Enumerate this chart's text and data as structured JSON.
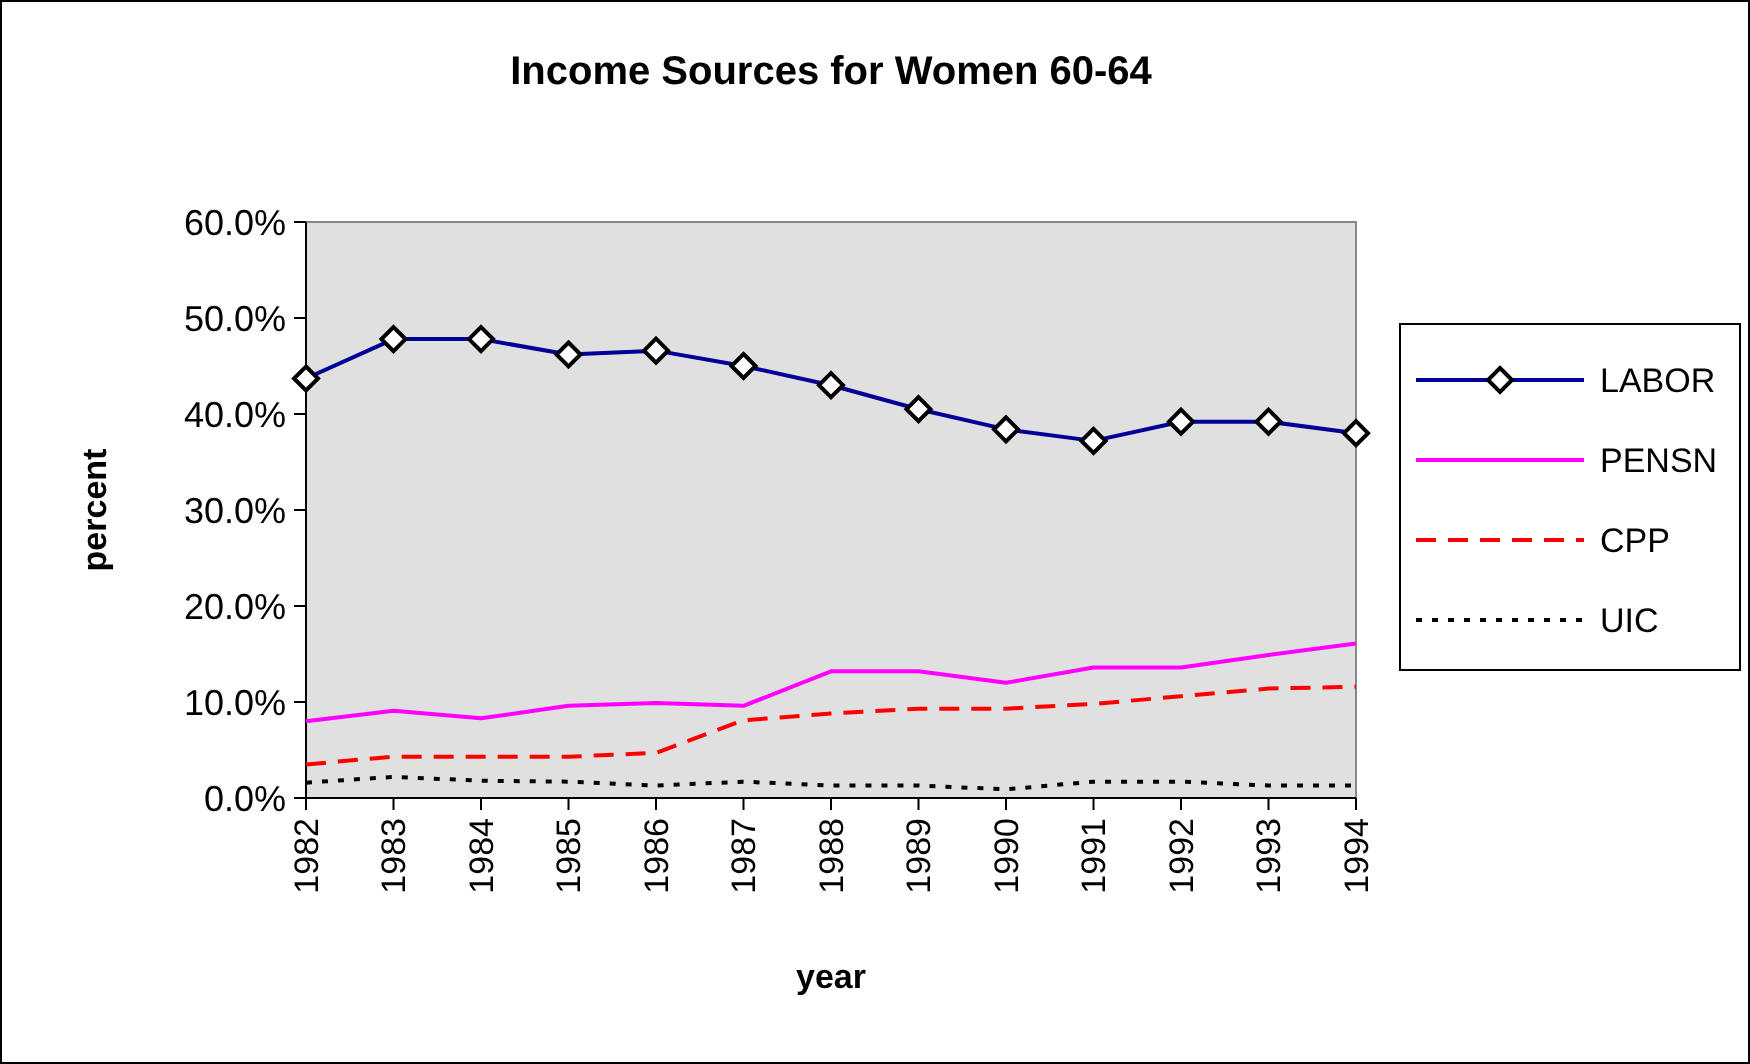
{
  "chart_data": {
    "type": "line",
    "title": "Income Sources for Women 60-64",
    "xlabel": "year",
    "ylabel": "percent",
    "categories": [
      "1982",
      "1983",
      "1984",
      "1985",
      "1986",
      "1987",
      "1988",
      "1989",
      "1990",
      "1991",
      "1992",
      "1993",
      "1994"
    ],
    "series": [
      {
        "name": "LABOR",
        "color": "#000099",
        "marker": "diamond",
        "line_style": "solid",
        "values": [
          43.7,
          47.8,
          47.8,
          46.2,
          46.6,
          45.0,
          43.0,
          40.5,
          38.4,
          37.2,
          39.2,
          39.2,
          38.0
        ]
      },
      {
        "name": "PENSN",
        "color": "#ff00ff",
        "marker": "none",
        "line_style": "solid",
        "values": [
          8.0,
          9.1,
          8.3,
          9.6,
          9.9,
          9.6,
          13.2,
          13.2,
          12.0,
          13.6,
          13.6,
          14.9,
          16.1
        ]
      },
      {
        "name": "CPP",
        "color": "#ff0000",
        "marker": "none",
        "line_style": "dashed",
        "values": [
          3.5,
          4.3,
          4.3,
          4.3,
          4.7,
          8.1,
          8.8,
          9.3,
          9.3,
          9.8,
          10.6,
          11.4,
          11.6
        ]
      },
      {
        "name": "UIC",
        "color": "#000000",
        "marker": "none",
        "line_style": "dotted",
        "values": [
          1.6,
          2.2,
          1.8,
          1.7,
          1.3,
          1.7,
          1.3,
          1.3,
          0.9,
          1.7,
          1.7,
          1.3,
          1.3
        ]
      }
    ],
    "ylim": [
      0,
      60
    ],
    "yticks": [
      {
        "value": 0,
        "label": "0.0%"
      },
      {
        "value": 10,
        "label": "10.0%"
      },
      {
        "value": 20,
        "label": "20.0%"
      },
      {
        "value": 30,
        "label": "30.0%"
      },
      {
        "value": 40,
        "label": "40.0%"
      },
      {
        "value": 50,
        "label": "50.0%"
      },
      {
        "value": 60,
        "label": "60.0%"
      }
    ],
    "grid": false,
    "legend": "right"
  }
}
